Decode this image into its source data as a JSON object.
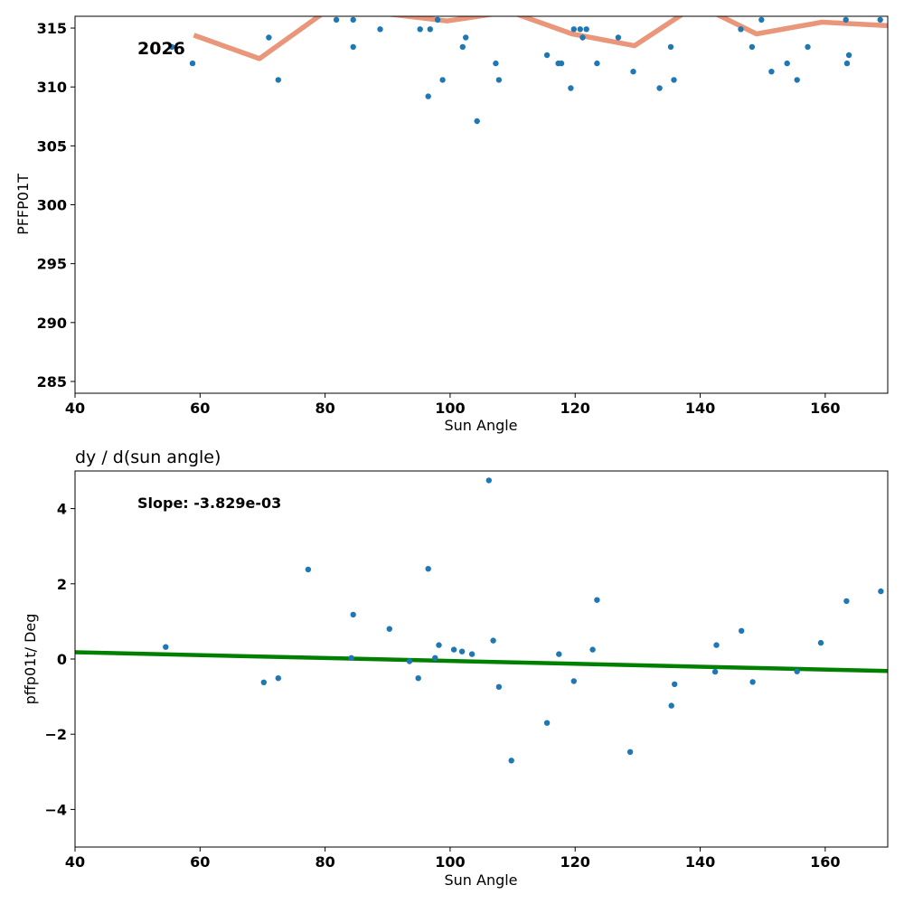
{
  "chart_data": [
    {
      "type": "line",
      "title": "",
      "xlabel": "Sun Angle",
      "ylabel": "PFFP01T",
      "xlim": [
        40,
        170
      ],
      "ylim": [
        284,
        316
      ],
      "xticks": [
        40,
        60,
        80,
        100,
        120,
        140,
        160
      ],
      "yticks": [
        285,
        290,
        295,
        300,
        305,
        310,
        315
      ],
      "grid": false,
      "annotation": "2026",
      "colors": {
        "points": "#1f77b4",
        "line": "#e9967a"
      },
      "scatter": {
        "x": [
          55.5,
          58.8,
          71,
          72.5,
          81.8,
          84.5,
          84.5,
          88.8,
          95.2,
          96.5,
          96.8,
          98,
          98.8,
          102,
          102.5,
          104.3,
          107.3,
          107.8,
          115.5,
          117.3,
          117.8,
          119.3,
          119.8,
          120.8,
          121.2,
          121.8,
          123.5,
          126.9,
          129.3,
          133.5,
          135.3,
          135.8,
          146.5,
          148.3,
          149.8,
          151.4,
          153.9,
          155.5,
          157.2,
          163.3,
          163.5,
          163.8,
          168.8
        ],
        "y": [
          313.4,
          312,
          314.2,
          310.6,
          315.7,
          313.4,
          315.7,
          314.9,
          314.9,
          309.2,
          314.9,
          315.7,
          310.6,
          313.4,
          314.2,
          307.1,
          312,
          310.6,
          312.7,
          312,
          312,
          309.9,
          314.9,
          314.9,
          314.2,
          314.9,
          312,
          314.2,
          311.3,
          309.9,
          313.4,
          310.6,
          314.9,
          313.4,
          315.7,
          311.3,
          312,
          310.6,
          313.4,
          315.7,
          312,
          312.7,
          315.7
        ]
      },
      "line": {
        "x": [
          59,
          69.5,
          79.5,
          90,
          99.5,
          109.5,
          119.5,
          129.5,
          139.5,
          149,
          159.5,
          170
        ],
        "y": [
          314.4,
          312.4,
          316.2,
          316.2,
          315.6,
          316.4,
          314.5,
          313.5,
          317.0,
          314.5,
          315.5,
          315.2
        ]
      }
    },
    {
      "type": "scatter",
      "title": "dy / d(sun angle)",
      "xlabel": "Sun Angle",
      "ylabel": "pffp01t/ Deg",
      "xlim": [
        40,
        170
      ],
      "ylim": [
        -5,
        5
      ],
      "xticks": [
        40,
        60,
        80,
        100,
        120,
        140,
        160
      ],
      "yticks": [
        -4,
        -2,
        0,
        2,
        4
      ],
      "ytick_labels": [
        "−4",
        "−2",
        "0",
        "2",
        "4"
      ],
      "grid": false,
      "annotation": "Slope: -3.829e-03",
      "colors": {
        "points": "#1f77b4",
        "line": "#008000"
      },
      "scatter": {
        "x": [
          54.5,
          70.2,
          72.5,
          77.3,
          84.2,
          84.5,
          90.3,
          93.5,
          94.9,
          96.5,
          97.6,
          98.2,
          100.6,
          101.9,
          103.5,
          106.2,
          106.9,
          107.8,
          109.8,
          115.5,
          117.4,
          119.8,
          122.8,
          123.5,
          128.8,
          135.4,
          135.9,
          142.4,
          142.6,
          146.6,
          148.4,
          155.5,
          159.3,
          163.4,
          168.9
        ],
        "y": [
          0.32,
          -0.62,
          -0.51,
          2.38,
          0.03,
          1.18,
          0.8,
          -0.06,
          -0.51,
          2.4,
          0.03,
          0.37,
          0.25,
          0.2,
          0.13,
          4.75,
          0.49,
          -0.74,
          -2.7,
          -1.7,
          0.13,
          -0.59,
          0.25,
          1.57,
          -2.47,
          -1.24,
          -0.67,
          -0.34,
          0.37,
          0.75,
          -0.61,
          -0.33,
          0.43,
          1.54,
          1.8
        ]
      },
      "line": {
        "x": [
          40,
          170
        ],
        "y": [
          0.18,
          -0.32
        ]
      }
    }
  ]
}
